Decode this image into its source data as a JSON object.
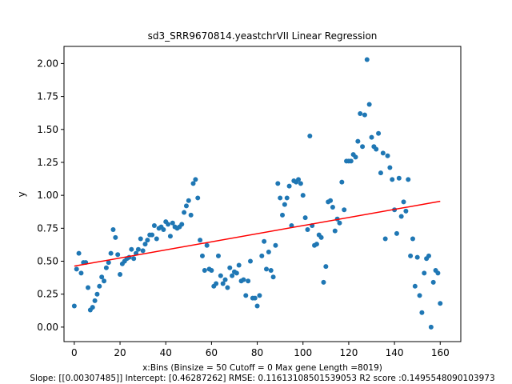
{
  "chart_data": {
    "type": "scatter",
    "title": "sd3_SRR9670814.yeastchrVII Linear Regression",
    "xlabel": "x:Bins  (Binsize = 50 Cutoff = 0 Max gene Length =8019)",
    "ylabel": "y",
    "footer": "Slope: [[0.00307485]] Intercept: [0.46287262] RMSE: 0.11613108501539053 R2 score :0.1495548090103973",
    "xlim": [
      -4.5,
      169
    ],
    "ylim": [
      -0.11,
      2.13
    ],
    "xticks": [
      0,
      20,
      40,
      60,
      80,
      100,
      120,
      140,
      160
    ],
    "yticks": [
      0.0,
      0.25,
      0.5,
      0.75,
      1.0,
      1.25,
      1.5,
      1.75,
      2.0
    ],
    "ytick_labels": [
      "0.00",
      "0.25",
      "0.50",
      "0.75",
      "1.00",
      "1.25",
      "1.50",
      "1.75",
      "2.00"
    ],
    "point_color": "#1f77b4",
    "line_color": "#ff0000",
    "regression": {
      "slope": 0.00307485,
      "intercept": 0.46287262,
      "x_range": [
        0,
        160
      ]
    },
    "x": [
      0,
      1,
      2,
      3,
      4,
      5,
      6,
      7,
      8,
      9,
      10,
      11,
      12,
      13,
      14,
      15,
      16,
      17,
      18,
      19,
      20,
      21,
      22,
      23,
      24,
      25,
      26,
      27,
      28,
      29,
      30,
      31,
      32,
      33,
      34,
      35,
      36,
      37,
      38,
      39,
      40,
      41,
      42,
      43,
      44,
      45,
      46,
      47,
      48,
      49,
      50,
      51,
      52,
      53,
      54,
      55,
      56,
      57,
      58,
      59,
      60,
      61,
      62,
      63,
      64,
      65,
      66,
      67,
      68,
      69,
      70,
      71,
      72,
      73,
      74,
      75,
      76,
      77,
      78,
      79,
      80,
      81,
      82,
      83,
      84,
      85,
      86,
      87,
      88,
      89,
      90,
      91,
      92,
      93,
      94,
      95,
      96,
      97,
      98,
      99,
      100,
      101,
      102,
      103,
      104,
      105,
      106,
      107,
      108,
      109,
      110,
      111,
      112,
      113,
      114,
      115,
      116,
      117,
      118,
      119,
      120,
      121,
      122,
      123,
      124,
      125,
      126,
      127,
      128,
      129,
      130,
      131,
      132,
      133,
      134,
      135,
      136,
      137,
      138,
      139,
      140,
      141,
      142,
      143,
      144,
      145,
      146,
      147,
      148,
      149,
      150,
      151,
      152,
      153,
      154,
      155,
      156,
      157,
      158,
      159,
      160
    ],
    "y": [
      0.16,
      0.44,
      0.56,
      0.41,
      0.49,
      0.49,
      0.3,
      0.13,
      0.15,
      0.2,
      0.25,
      0.31,
      0.38,
      0.35,
      0.45,
      0.49,
      0.56,
      0.74,
      0.68,
      0.55,
      0.4,
      0.48,
      0.5,
      0.52,
      0.53,
      0.59,
      0.52,
      0.56,
      0.59,
      0.67,
      0.58,
      0.63,
      0.66,
      0.7,
      0.7,
      0.77,
      0.67,
      0.75,
      0.76,
      0.74,
      0.8,
      0.78,
      0.69,
      0.79,
      0.76,
      0.75,
      0.76,
      0.78,
      0.87,
      0.92,
      0.96,
      0.85,
      1.09,
      1.12,
      0.98,
      0.66,
      0.54,
      0.43,
      0.62,
      0.44,
      0.43,
      0.31,
      0.33,
      0.54,
      0.39,
      0.33,
      0.36,
      0.3,
      0.45,
      0.39,
      0.42,
      0.41,
      0.47,
      0.35,
      0.36,
      0.24,
      0.35,
      0.5,
      0.22,
      0.22,
      0.16,
      0.24,
      0.54,
      0.65,
      0.44,
      0.57,
      0.43,
      0.38,
      0.62,
      1.09,
      0.98,
      0.85,
      0.93,
      0.98,
      1.07,
      0.77,
      1.11,
      1.1,
      1.12,
      1.09,
      1.0,
      0.83,
      0.74,
      1.45,
      0.77,
      0.62,
      0.63,
      0.7,
      0.68,
      0.34,
      0.46,
      0.95,
      0.96,
      0.91,
      0.73,
      0.82,
      0.79,
      1.1,
      0.89,
      1.26,
      1.26,
      1.26,
      1.31,
      1.29,
      1.41,
      1.62,
      1.37,
      1.61,
      2.03,
      1.69,
      1.44,
      1.37,
      1.35,
      1.47,
      1.17,
      1.32,
      0.67,
      1.3,
      1.21,
      1.12,
      0.89,
      0.71,
      1.13,
      0.84,
      0.95,
      0.88,
      1.12,
      0.54,
      0.67,
      0.31,
      0.53,
      0.24,
      0.11,
      0.41,
      0.52,
      0.54,
      0.0,
      0.34,
      0.43,
      0.41,
      0.18
    ]
  }
}
